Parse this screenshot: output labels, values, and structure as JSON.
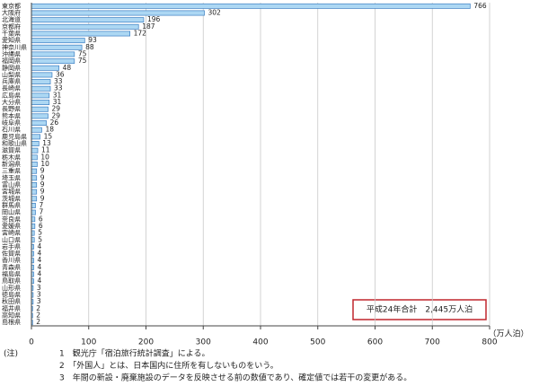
{
  "chart_data": {
    "type": "barh",
    "categories": [
      "東京都",
      "大阪府",
      "北海道",
      "京都府",
      "千葉県",
      "愛知県",
      "神奈川県",
      "沖縄県",
      "福岡県",
      "静岡県",
      "山梨県",
      "兵庫県",
      "長崎県",
      "広島県",
      "大分県",
      "長野県",
      "熊本県",
      "岐阜県",
      "石川県",
      "鹿児島県",
      "和歌山県",
      "滋賀県",
      "栃木県",
      "新潟県",
      "三重県",
      "埼玉県",
      "富山県",
      "宮城県",
      "茨城県",
      "群馬県",
      "岡山県",
      "奈良県",
      "愛媛県",
      "宮崎県",
      "山口県",
      "岩手県",
      "佐賀県",
      "香川県",
      "青森県",
      "福島県",
      "鳥取県",
      "山形県",
      "徳島県",
      "秋田県",
      "福井県",
      "高知県",
      "島根県"
    ],
    "values": [
      766,
      302,
      196,
      187,
      172,
      93,
      88,
      75,
      75,
      48,
      36,
      33,
      33,
      31,
      31,
      29,
      29,
      26,
      18,
      15,
      13,
      11,
      10,
      10,
      9,
      9,
      9,
      9,
      9,
      7,
      7,
      6,
      6,
      5,
      5,
      4,
      4,
      4,
      4,
      4,
      4,
      3,
      3,
      3,
      2,
      2,
      2
    ],
    "color": "#acd7f3",
    "edgecolor": "#3b7ec2",
    "xlim": [
      0,
      800
    ],
    "xticks": [
      0,
      100,
      200,
      300,
      400,
      500,
      600,
      700,
      800
    ],
    "grid": true,
    "x_label": "（万人泊）",
    "annotation": "平成24年合計　2,445万人泊",
    "notes_label": "(注)",
    "notes": [
      "1　観光庁「宿泊旅行統計調査」による。",
      "2　「外国人」とは、日本国内に住所を有しないものをいう。",
      "3　年間の新設・廃棄施設のデータを反映させる前の数値であり、確定値では若干の変更がある。"
    ]
  }
}
